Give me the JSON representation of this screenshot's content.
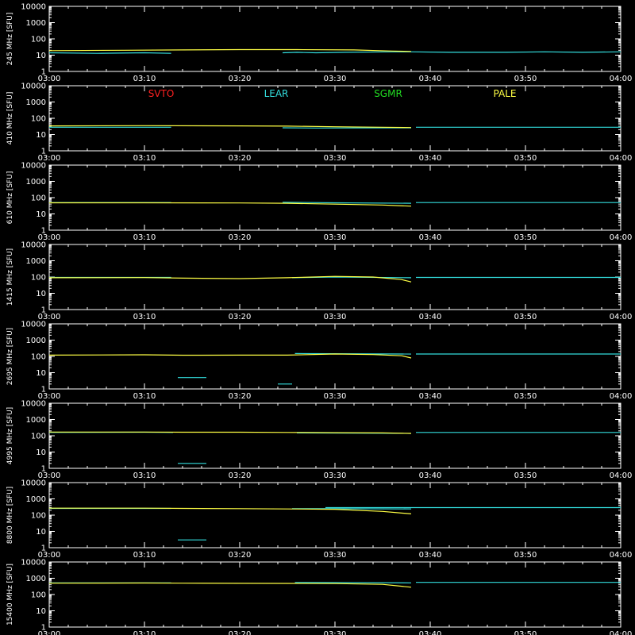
{
  "colors": {
    "background": "#000000",
    "axes": "#ffffff",
    "SVTO": "#ff2020",
    "LEAR": "#33dddd",
    "SGMR": "#22dd22",
    "PALE": "#ffff44"
  },
  "legend": [
    "SVTO",
    "LEAR",
    "SGMR",
    "PALE"
  ],
  "chart_data": {
    "type": "line",
    "scale": "log",
    "ylim": [
      1,
      10000
    ],
    "yticks": [
      "1",
      "10",
      "100",
      "1000",
      "10000"
    ],
    "xrange_min": [
      0,
      60
    ],
    "xticks": [
      "03:00",
      "03:10",
      "03:20",
      "03:30",
      "03:40",
      "03:50",
      "04:00"
    ],
    "panels": [
      {
        "ylabel": "245 MHz [SFU]",
        "series": [
          {
            "name": "LEAR",
            "segments": [
              [
                [
                  0,
                  14
                ],
                [
                  5,
                  13
                ],
                [
                  10,
                  14
                ],
                [
                  12.8,
                  13
                ]
              ],
              [
                [
                  24.5,
                  14
                ],
                [
                  26,
                  15
                ],
                [
                  28,
                  14
                ],
                [
                  31,
                  15
                ],
                [
                  36,
                  16
                ],
                [
                  38,
                  16
                ],
                [
                  42,
                  15
                ],
                [
                  48,
                  15
                ],
                [
                  52,
                  16
                ],
                [
                  56,
                  15
                ],
                [
                  60,
                  16
                ]
              ]
            ]
          },
          {
            "name": "PALE",
            "segments": [
              [
                [
                  0,
                  19
                ],
                [
                  8,
                  20
                ],
                [
                  14,
                  21
                ],
                [
                  20,
                  22
                ],
                [
                  26,
                  22
                ],
                [
                  32,
                  21
                ],
                [
                  36,
                  18
                ],
                [
                  38,
                  17
                ]
              ]
            ]
          }
        ]
      },
      {
        "ylabel": "410 MHz [SFU]",
        "series": [
          {
            "name": "LEAR",
            "segments": [
              [
                [
                  0,
                  28
                ],
                [
                  5,
                  28
                ],
                [
                  12.8,
                  28
                ]
              ],
              [
                [
                  24.5,
                  26
                ],
                [
                  28,
                  25
                ],
                [
                  38,
                  26
                ]
              ],
              [
                [
                  38.5,
                  28
                ],
                [
                  45,
                  28
                ],
                [
                  60,
                  28
                ]
              ]
            ]
          },
          {
            "name": "PALE",
            "segments": [
              [
                [
                  0,
                  34
                ],
                [
                  10,
                  35
                ],
                [
                  20,
                  34
                ],
                [
                  25,
                  33
                ],
                [
                  30,
                  30
                ],
                [
                  35,
                  28
                ],
                [
                  38,
                  27
                ]
              ]
            ]
          }
        ]
      },
      {
        "ylabel": "610 MHz [SFU]",
        "series": [
          {
            "name": "LEAR",
            "segments": [
              [
                [
                  0,
                  50
                ],
                [
                  12.8,
                  50
                ]
              ],
              [
                [
                  24.5,
                  52
                ],
                [
                  30,
                  48
                ],
                [
                  38,
                  45
                ]
              ],
              [
                [
                  38.5,
                  50
                ],
                [
                  60,
                  50
                ]
              ]
            ]
          },
          {
            "name": "PALE",
            "segments": [
              [
                [
                  0,
                  48
                ],
                [
                  10,
                  48
                ],
                [
                  20,
                  47
                ],
                [
                  25,
                  45
                ],
                [
                  30,
                  40
                ],
                [
                  35,
                  35
                ],
                [
                  38,
                  30
                ]
              ]
            ]
          }
        ]
      },
      {
        "ylabel": "1415 MHz [SFU]",
        "series": [
          {
            "name": "LEAR",
            "segments": [
              [
                [
                  0,
                  95
                ],
                [
                  12.8,
                  95
                ]
              ],
              [
                [
                  25.5,
                  90
                ],
                [
                  30,
                  100
                ],
                [
                  38,
                  90
                ]
              ],
              [
                [
                  38.5,
                  95
                ],
                [
                  50,
                  95
                ],
                [
                  60,
                  95
                ]
              ]
            ]
          },
          {
            "name": "PALE",
            "segments": [
              [
                [
                  0,
                  90
                ],
                [
                  10,
                  92
                ],
                [
                  14,
                  85
                ],
                [
                  20,
                  80
                ],
                [
                  25,
                  90
                ],
                [
                  30,
                  110
                ],
                [
                  34,
                  100
                ],
                [
                  37,
                  70
                ],
                [
                  38,
                  50
                ]
              ]
            ]
          }
        ]
      },
      {
        "ylabel": "2695 MHz [SFU]",
        "series": [
          {
            "name": "LEAR",
            "segments": [
              [
                [
                  13.5,
                  5
                ],
                [
                  16.5,
                  5
                ]
              ],
              [
                [
                  24,
                  2
                ],
                [
                  25.5,
                  2
                ]
              ],
              [
                [
                  25.8,
                  150
                ],
                [
                  38,
                  140
                ]
              ],
              [
                [
                  38.5,
                  140
                ],
                [
                  60,
                  140
                ]
              ]
            ]
          },
          {
            "name": "PALE",
            "segments": [
              [
                [
                  0,
                  120
                ],
                [
                  10,
                  125
                ],
                [
                  14,
                  118
                ],
                [
                  20,
                  120
                ],
                [
                  25,
                  120
                ],
                [
                  30,
                  140
                ],
                [
                  34,
                  130
                ],
                [
                  37,
                  110
                ],
                [
                  38,
                  80
                ]
              ]
            ]
          }
        ]
      },
      {
        "ylabel": "4995 MHz [SFU]",
        "series": [
          {
            "name": "LEAR",
            "segments": [
              [
                [
                  0,
                  160
                ],
                [
                  10,
                  165
                ],
                [
                  13,
                  160
                ]
              ],
              [
                [
                  13.5,
                  2
                ],
                [
                  16.5,
                  2
                ]
              ],
              [
                [
                  26,
                  150
                ],
                [
                  38,
                  140
                ]
              ],
              [
                [
                  38.5,
                  160
                ],
                [
                  60,
                  160
                ]
              ]
            ]
          },
          {
            "name": "PALE",
            "segments": [
              [
                [
                  0,
                  170
                ],
                [
                  10,
                  170
                ],
                [
                  14,
                  165
                ],
                [
                  20,
                  165
                ],
                [
                  25,
                  160
                ],
                [
                  30,
                  155
                ],
                [
                  35,
                  150
                ],
                [
                  38,
                  140
                ]
              ]
            ]
          }
        ]
      },
      {
        "ylabel": "8800 MHz [SFU]",
        "series": [
          {
            "name": "LEAR",
            "segments": [
              [
                [
                  0,
                  260
                ],
                [
                  12.8,
                  260
                ]
              ],
              [
                [
                  13.5,
                  3
                ],
                [
                  16.5,
                  3
                ]
              ],
              [
                [
                  25.5,
                  250
                ],
                [
                  30,
                  250
                ],
                [
                  38,
                  240
                ]
              ],
              [
                [
                  29,
                  290
                ],
                [
                  60,
                  290
                ]
              ]
            ]
          },
          {
            "name": "PALE",
            "segments": [
              [
                [
                  0,
                  270
                ],
                [
                  10,
                  270
                ],
                [
                  14,
                  260
                ],
                [
                  20,
                  250
                ],
                [
                  25,
                  240
                ],
                [
                  30,
                  230
                ],
                [
                  35,
                  170
                ],
                [
                  38,
                  120
                ]
              ]
            ]
          }
        ]
      },
      {
        "ylabel": "15400 MHz [SFU]",
        "series": [
          {
            "name": "LEAR",
            "segments": [
              [
                [
                  0,
                  520
                ],
                [
                  12.8,
                  520
                ]
              ],
              [
                [
                  25.8,
                  550
                ],
                [
                  38,
                  520
                ]
              ],
              [
                [
                  38.5,
                  560
                ],
                [
                  60,
                  560
                ]
              ]
            ]
          },
          {
            "name": "PALE",
            "segments": [
              [
                [
                  0,
                  500
                ],
                [
                  10,
                  510
                ],
                [
                  14,
                  500
                ],
                [
                  20,
                  490
                ],
                [
                  25,
                  480
                ],
                [
                  30,
                  470
                ],
                [
                  35,
                  420
                ],
                [
                  38,
                  280
                ]
              ]
            ]
          }
        ]
      }
    ]
  }
}
